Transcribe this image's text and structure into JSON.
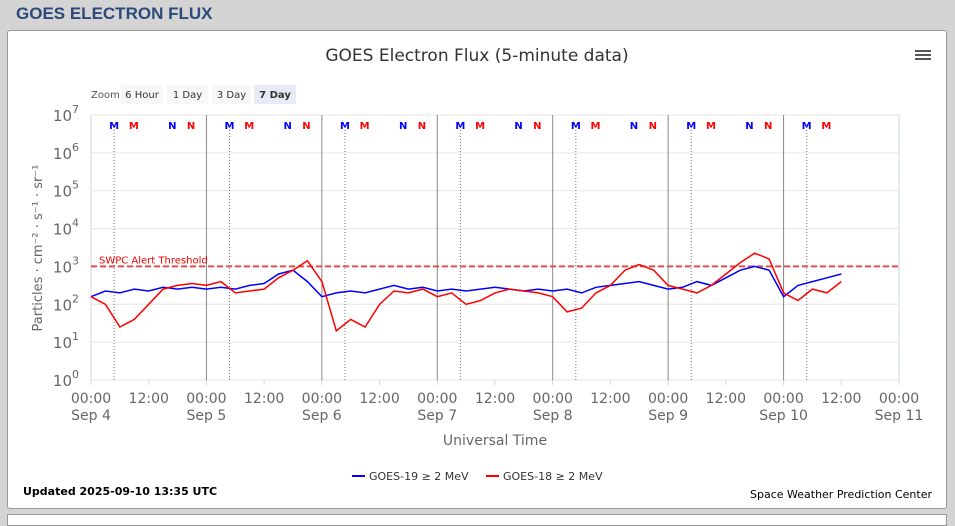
{
  "header": {
    "title": "GOES ELECTRON FLUX"
  },
  "zoom": {
    "label": "Zoom",
    "buttons": [
      "6 Hour",
      "1 Day",
      "3 Day",
      "7 Day"
    ],
    "active": "7 Day"
  },
  "footer": {
    "updated": "Updated 2025-09-10 13:35 UTC",
    "credit": "Space Weather Prediction Center"
  },
  "colors": {
    "goes19": "#0000ff",
    "goes18": "#ff0000"
  },
  "chart_data": {
    "type": "line",
    "title": "GOES Electron Flux (5-minute data)",
    "xlabel": "Universal Time",
    "ylabel": "Particles · cm⁻² · s⁻¹ · sr⁻¹",
    "y_scale": "log",
    "ylim_exp": [
      0,
      7
    ],
    "y_ticks": [
      "10^0",
      "10^1",
      "10^2",
      "10^3",
      "10^4",
      "10^5",
      "10^6",
      "10^7"
    ],
    "x_range_hours": [
      0,
      168
    ],
    "x_ticks": [
      {
        "t": "00:00",
        "d": "Sep 4"
      },
      {
        "t": "12:00",
        "d": ""
      },
      {
        "t": "00:00",
        "d": "Sep 5"
      },
      {
        "t": "12:00",
        "d": ""
      },
      {
        "t": "00:00",
        "d": "Sep 6"
      },
      {
        "t": "12:00",
        "d": ""
      },
      {
        "t": "00:00",
        "d": "Sep 7"
      },
      {
        "t": "12:00",
        "d": ""
      },
      {
        "t": "00:00",
        "d": "Sep 8"
      },
      {
        "t": "12:00",
        "d": ""
      },
      {
        "t": "00:00",
        "d": "Sep 9"
      },
      {
        "t": "12:00",
        "d": ""
      },
      {
        "t": "00:00",
        "d": "Sep 10"
      },
      {
        "t": "12:00",
        "d": ""
      },
      {
        "t": "00:00",
        "d": "Sep 11"
      }
    ],
    "threshold": {
      "label": "SWPC Alert Threshold",
      "value": 1000
    },
    "markers": [
      {
        "label": "M",
        "series": "goes19",
        "hour_of_day": 4.8
      },
      {
        "label": "M",
        "series": "goes18",
        "hour_of_day": 8.9
      },
      {
        "label": "N",
        "series": "goes19",
        "hour_of_day": 16.9
      },
      {
        "label": "N",
        "series": "goes18",
        "hour_of_day": 20.8
      }
    ],
    "marker_days": 7,
    "last_day_markers": 2,
    "x_step_hours": 3,
    "series": [
      {
        "name": "GOES-19 ≥ 2 MeV",
        "color": "#0000ff",
        "log10_values": [
          2.2,
          2.35,
          2.3,
          2.4,
          2.35,
          2.45,
          2.4,
          2.45,
          2.4,
          2.45,
          2.4,
          2.5,
          2.55,
          2.8,
          2.9,
          2.6,
          2.2,
          2.3,
          2.35,
          2.3,
          2.4,
          2.5,
          2.4,
          2.45,
          2.35,
          2.4,
          2.35,
          2.4,
          2.45,
          2.4,
          2.35,
          2.4,
          2.35,
          2.4,
          2.3,
          2.45,
          2.5,
          2.55,
          2.6,
          2.5,
          2.4,
          2.45,
          2.6,
          2.5,
          2.7,
          2.9,
          3.0,
          2.9,
          2.2,
          2.5,
          2.6,
          2.7,
          2.8
        ]
      },
      {
        "name": "GOES-18 ≥ 2 MeV",
        "color": "#ff0000",
        "log10_values": [
          2.2,
          2.0,
          1.4,
          1.6,
          2.0,
          2.4,
          2.5,
          2.55,
          2.5,
          2.6,
          2.3,
          2.35,
          2.4,
          2.7,
          2.9,
          3.15,
          2.6,
          1.3,
          1.6,
          1.4,
          2.0,
          2.35,
          2.3,
          2.4,
          2.2,
          2.3,
          2.0,
          2.1,
          2.3,
          2.4,
          2.35,
          2.3,
          2.2,
          1.8,
          1.9,
          2.3,
          2.5,
          2.9,
          3.05,
          2.9,
          2.5,
          2.4,
          2.3,
          2.5,
          2.8,
          3.1,
          3.35,
          3.2,
          2.3,
          2.1,
          2.4,
          2.3,
          2.6
        ]
      }
    ]
  }
}
